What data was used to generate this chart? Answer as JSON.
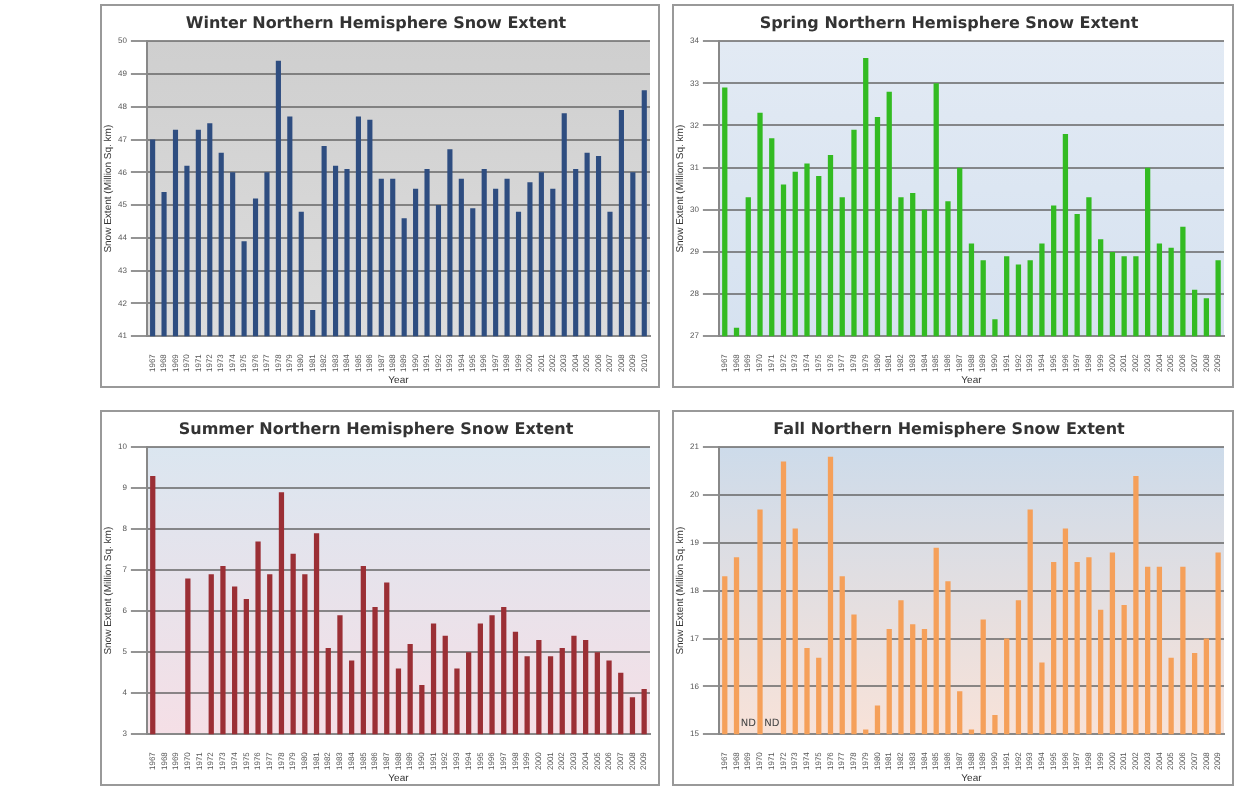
{
  "chart_data": [
    {
      "type": "bar",
      "title": "Winter Northern Hemisphere Snow Extent",
      "xlabel": "Year",
      "ylabel": "Snow Extent (Million Sq. km)",
      "color": "#2e4d80",
      "ylim": [
        41,
        50
      ],
      "yticks": [
        41,
        42,
        43,
        44,
        45,
        46,
        47,
        48,
        49,
        50
      ],
      "grid": "y",
      "categories": [
        "1967",
        "1968",
        "1969",
        "1970",
        "1971",
        "1972",
        "1973",
        "1974",
        "1975",
        "1976",
        "1977",
        "1978",
        "1979",
        "1980",
        "1981",
        "1982",
        "1983",
        "1984",
        "1985",
        "1986",
        "1987",
        "1988",
        "1989",
        "1990",
        "1991",
        "1992",
        "1993",
        "1994",
        "1995",
        "1996",
        "1997",
        "1998",
        "1999",
        "2000",
        "2001",
        "2002",
        "2003",
        "2004",
        "2005",
        "2006",
        "2007",
        "2008",
        "2009",
        "2010"
      ],
      "values": [
        47.0,
        45.4,
        47.3,
        46.2,
        47.3,
        47.5,
        46.6,
        46.0,
        43.9,
        45.2,
        46.0,
        49.4,
        47.7,
        44.8,
        41.8,
        46.8,
        46.2,
        46.1,
        47.7,
        47.6,
        45.8,
        45.8,
        44.6,
        45.5,
        46.1,
        45.0,
        46.7,
        45.8,
        44.9,
        46.1,
        45.5,
        45.8,
        44.8,
        45.7,
        46.0,
        45.5,
        47.8,
        46.1,
        46.6,
        46.5,
        44.8,
        47.9,
        46.0,
        48.5
      ]
    },
    {
      "type": "bar",
      "title": "Spring Northern Hemisphere Snow Extent",
      "xlabel": "Year",
      "ylabel": "Snow Extent (Million Sq. km)",
      "color": "#33bb22",
      "ylim": [
        27,
        34
      ],
      "yticks": [
        27,
        28,
        29,
        30,
        31,
        32,
        33,
        34
      ],
      "grid": "y",
      "categories": [
        "1967",
        "1968",
        "1969",
        "1970",
        "1971",
        "1972",
        "1973",
        "1974",
        "1975",
        "1976",
        "1977",
        "1978",
        "1979",
        "1980",
        "1981",
        "1982",
        "1983",
        "1984",
        "1985",
        "1986",
        "1987",
        "1988",
        "1989",
        "1990",
        "1991",
        "1992",
        "1993",
        "1994",
        "1995",
        "1996",
        "1997",
        "1998",
        "1999",
        "2000",
        "2001",
        "2002",
        "2003",
        "2004",
        "2005",
        "2006",
        "2007",
        "2008",
        "2009"
      ],
      "values": [
        32.9,
        27.2,
        30.3,
        32.3,
        31.7,
        30.6,
        30.9,
        31.1,
        30.8,
        31.3,
        30.3,
        31.9,
        33.6,
        32.2,
        32.8,
        30.3,
        30.4,
        30.0,
        33.0,
        30.2,
        31.0,
        29.2,
        28.8,
        27.4,
        28.9,
        28.7,
        28.8,
        29.2,
        30.1,
        31.8,
        29.9,
        30.3,
        29.3,
        29.0,
        28.9,
        28.9,
        31.0,
        29.2,
        29.1,
        29.6,
        28.1,
        27.9,
        28.8
      ]
    },
    {
      "type": "bar",
      "title": "Summer Northern Hemisphere Snow Extent",
      "xlabel": "Year",
      "ylabel": "Snow Extent (Million Sq. km)",
      "color": "#9b2f35",
      "ylim": [
        3,
        10
      ],
      "yticks": [
        3,
        4,
        5,
        6,
        7,
        8,
        9,
        10
      ],
      "grid": "y",
      "categories": [
        "1967",
        "1968",
        "1969",
        "1970",
        "1971",
        "1972",
        "1973",
        "1974",
        "1975",
        "1976",
        "1977",
        "1978",
        "1979",
        "1980",
        "1981",
        "1982",
        "1983",
        "1984",
        "1985",
        "1986",
        "1987",
        "1988",
        "1989",
        "1990",
        "1991",
        "1992",
        "1993",
        "1994",
        "1995",
        "1996",
        "1997",
        "1998",
        "1999",
        "2000",
        "2001",
        "2002",
        "2003",
        "2004",
        "2005",
        "2006",
        "2007",
        "2008",
        "2009"
      ],
      "values": [
        9.3,
        null,
        null,
        6.8,
        null,
        6.9,
        7.1,
        6.6,
        6.3,
        7.7,
        6.9,
        8.9,
        7.4,
        6.9,
        7.9,
        5.1,
        5.9,
        4.8,
        7.1,
        6.1,
        6.7,
        4.6,
        5.2,
        4.2,
        5.7,
        5.4,
        4.6,
        5.0,
        5.7,
        5.9,
        6.1,
        5.5,
        4.9,
        5.3,
        4.9,
        5.1,
        5.4,
        5.3,
        5.0,
        4.8,
        4.5,
        3.9,
        4.1
      ]
    },
    {
      "type": "bar",
      "title": "Fall Northern Hemisphere Snow Extent",
      "xlabel": "Year",
      "ylabel": "Snow Extent (Million Sq. km)",
      "color": "#f5a05a",
      "ylim": [
        15,
        21
      ],
      "yticks": [
        15,
        16,
        17,
        18,
        19,
        20,
        21
      ],
      "grid": "y",
      "categories": [
        "1967",
        "1968",
        "1969",
        "1970",
        "1971",
        "1972",
        "1973",
        "1974",
        "1975",
        "1976",
        "1977",
        "1978",
        "1979",
        "1980",
        "1981",
        "1982",
        "1983",
        "1984",
        "1985",
        "1986",
        "1987",
        "1988",
        "1989",
        "1990",
        "1991",
        "1992",
        "1993",
        "1994",
        "1995",
        "1996",
        "1997",
        "1998",
        "1999",
        "2000",
        "2001",
        "2002",
        "2003",
        "2004",
        "2005",
        "2006",
        "2007",
        "2008",
        "2009"
      ],
      "values": [
        18.3,
        18.7,
        null,
        19.7,
        null,
        20.7,
        19.3,
        16.8,
        16.6,
        20.8,
        18.3,
        17.5,
        15.1,
        15.6,
        17.2,
        17.8,
        17.3,
        17.2,
        18.9,
        18.2,
        15.9,
        15.1,
        17.4,
        15.4,
        17.0,
        17.8,
        19.7,
        16.5,
        18.6,
        19.3,
        18.6,
        18.7,
        17.6,
        18.8,
        17.7,
        20.4,
        18.5,
        18.5,
        16.6,
        18.5,
        16.7,
        17.0,
        18.8
      ],
      "annotations": [
        {
          "text": "ND",
          "x": "1969",
          "y": 15
        },
        {
          "text": "ND",
          "x": "1971",
          "y": 15
        }
      ]
    }
  ]
}
